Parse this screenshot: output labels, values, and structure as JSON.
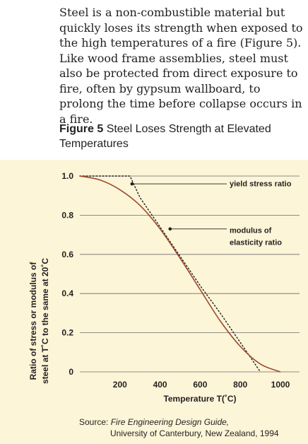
{
  "article": {
    "paragraph": "Steel is a non-combustible material but quickly loses its strength when exposed to the high temperatures of a fire (Figure 5). Like wood frame assemblies, steel must also be protected from direct exposure to fire, often by gypsum wallboard, to prolong the time before collapse occurs in a fire."
  },
  "figure": {
    "number": "Figure 5",
    "title": "Steel Loses Strength at Elevated Temperatures"
  },
  "chart_data": {
    "type": "line",
    "xlabel": "Temperature T(˚C)",
    "ylabel_lines": [
      "Ratio of stress or modulus of",
      "steel at T˚C to the same at 20˚C"
    ],
    "xlim": [
      0,
      1000
    ],
    "ylim": [
      0,
      1.0
    ],
    "x_ticks": [
      200,
      400,
      600,
      800,
      1000
    ],
    "y_ticks": [
      0,
      0.2,
      0.4,
      0.6,
      0.8,
      1.0
    ],
    "y_tick_labels": [
      "0",
      "0.2",
      "0.4",
      "0.6",
      "0.8",
      "1.0"
    ],
    "grid": "horizontal",
    "series": [
      {
        "name": "yield stress ratio",
        "style": "dotted",
        "color": "#231f20",
        "x": [
          0,
          250,
          300,
          400,
          500,
          600,
          700,
          800,
          900
        ],
        "y": [
          1.0,
          1.0,
          0.89,
          0.74,
          0.59,
          0.44,
          0.3,
          0.15,
          0.0
        ]
      },
      {
        "name": "modulus of elasticity ratio",
        "style": "solid",
        "color": "#9b4a2b",
        "x": [
          0,
          100,
          200,
          300,
          400,
          500,
          600,
          700,
          800,
          900,
          1000
        ],
        "y": [
          1.0,
          0.98,
          0.93,
          0.85,
          0.73,
          0.58,
          0.42,
          0.26,
          0.13,
          0.04,
          0.0
        ]
      }
    ],
    "annotations": [
      {
        "label_lines": [
          "yield stress ratio"
        ],
        "point": [
          260,
          0.96
        ]
      },
      {
        "label_lines": [
          "modulus of",
          "elasticity ratio"
        ],
        "point": [
          450,
          0.73
        ]
      }
    ]
  },
  "source": {
    "prefix": "Source: ",
    "publication": "Fire Engineering Design Guide,",
    "line2": "University of Canterbury, New Zealand, 1994"
  },
  "colors": {
    "panel_background": "#fdf5d8",
    "gridline": "#6b6b6b",
    "modulus_curve": "#9b4a2b"
  }
}
